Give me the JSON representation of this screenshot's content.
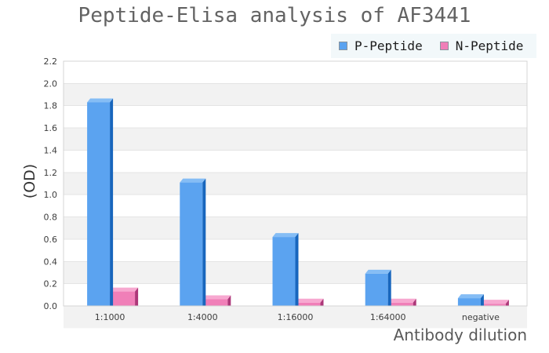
{
  "chart_data": {
    "type": "bar",
    "title": "Peptide-Elisa analysis of AF3441",
    "categories": [
      "1:1000",
      "1:4000",
      "1:16000",
      "1:64000",
      "negative"
    ],
    "series": [
      {
        "name": "P-Peptide",
        "color": "#5ba3f0",
        "color_top": "#85bdf5",
        "color_side": "#1866bd",
        "values": [
          1.83,
          1.11,
          0.62,
          0.29,
          0.07
        ]
      },
      {
        "name": "N-Peptide",
        "color": "#f07fb8",
        "color_top": "#f7a8d0",
        "color_side": "#ad3779",
        "values": [
          0.13,
          0.06,
          0.03,
          0.03,
          0.02
        ]
      }
    ],
    "xlabel": "Antibody dilution",
    "ylabel": "(OD)",
    "ylim": [
      0,
      2.2
    ],
    "ytick_step": 0.2,
    "grid": "alternating-horizontal-bands",
    "legend_position": "top-right",
    "colors": {
      "band": "#f2f2f2",
      "gridline": "#e4e4e4",
      "plot_border": "#d4d4d4",
      "title_text": "#636363",
      "axis_title_text": "#595959",
      "tick_text": "#3d3d3d",
      "legend_bg": "#f2f8fa"
    }
  }
}
